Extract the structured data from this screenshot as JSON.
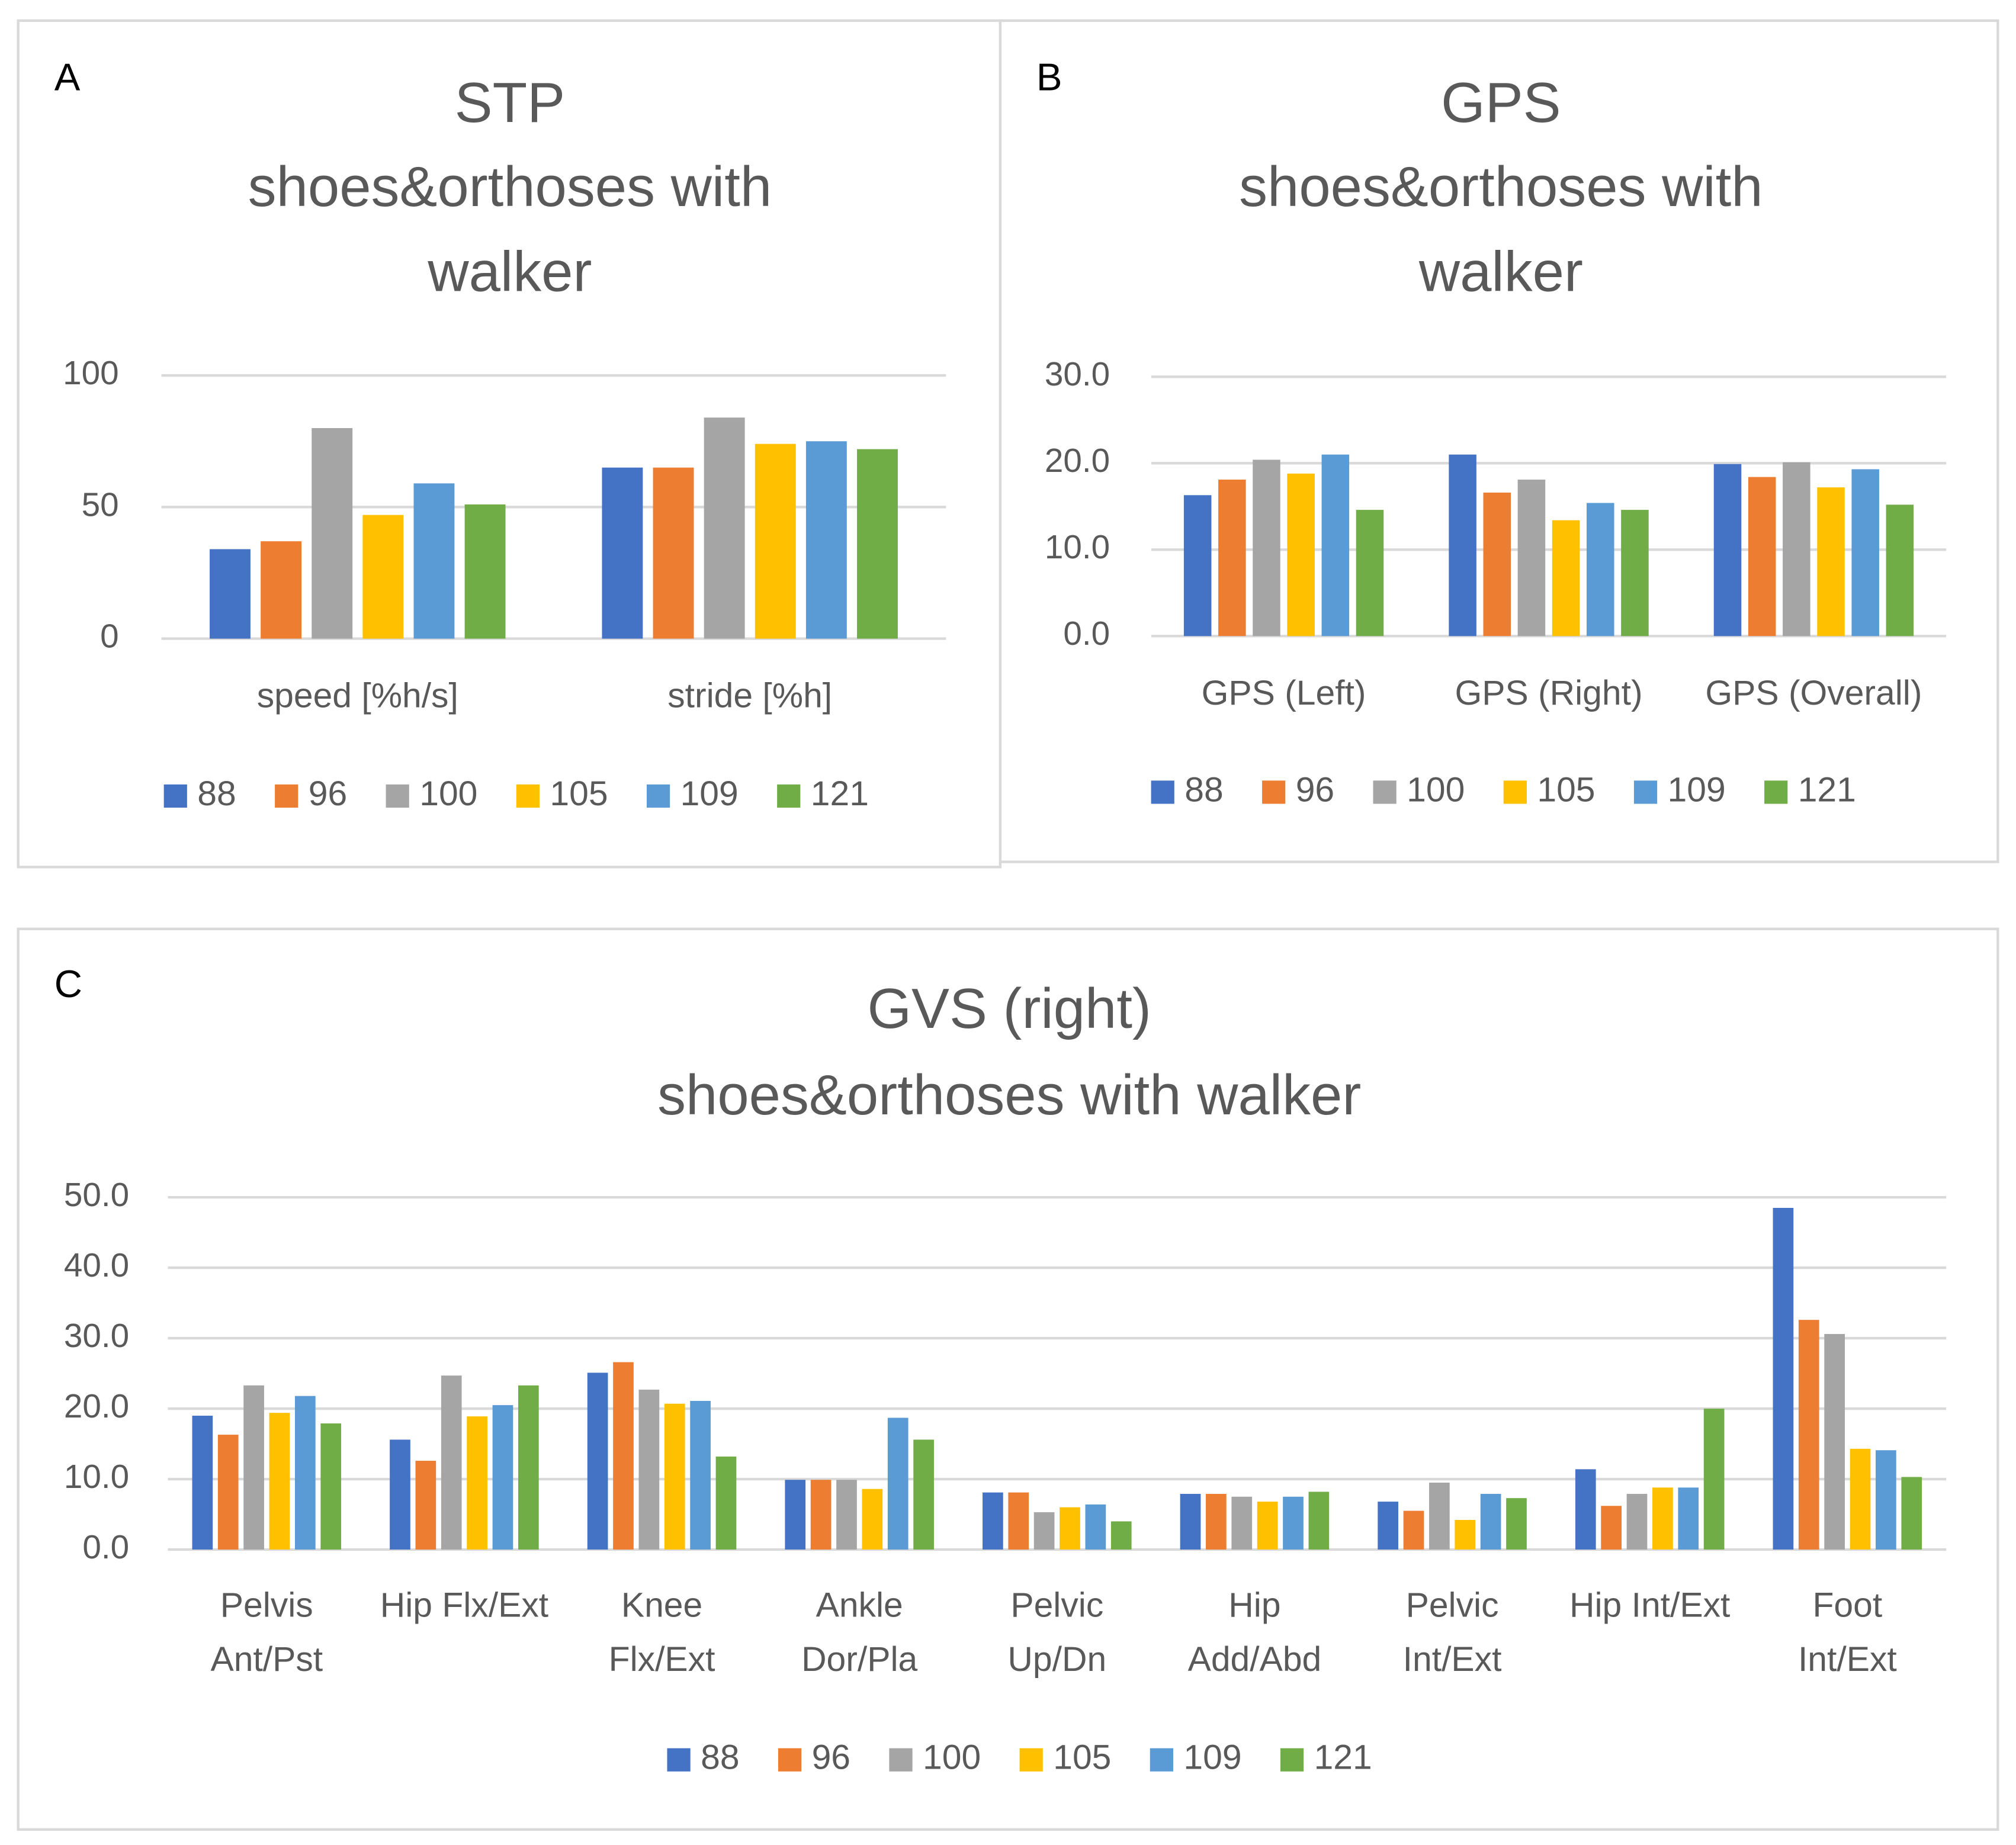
{
  "chart_data": [
    {
      "type": "bar",
      "panel": "A",
      "title": [
        "STP",
        "shoes&orthoses with",
        "walker"
      ],
      "categories": [
        [
          "speed [%h/s]"
        ],
        [
          "stride [%h]"
        ]
      ],
      "ylim": [
        0,
        100
      ],
      "yticks": [
        0,
        50,
        100
      ],
      "grid": true,
      "legend": "bottom",
      "series": [
        {
          "name": "88",
          "color": "#4472c4",
          "values": [
            34,
            65
          ]
        },
        {
          "name": "96",
          "color": "#ed7d31",
          "values": [
            37,
            65
          ]
        },
        {
          "name": "100",
          "color": "#a5a5a5",
          "values": [
            80,
            84
          ]
        },
        {
          "name": "105",
          "color": "#ffc000",
          "values": [
            47,
            74
          ]
        },
        {
          "name": "109",
          "color": "#5b9bd5",
          "values": [
            59,
            75
          ]
        },
        {
          "name": "121",
          "color": "#70ad47",
          "values": [
            51,
            72
          ]
        }
      ]
    },
    {
      "type": "bar",
      "panel": "B",
      "title": [
        "GPS",
        "shoes&orthoses with",
        "walker"
      ],
      "categories": [
        [
          "GPS (Left)"
        ],
        [
          "GPS (Right)"
        ],
        [
          "GPS (Overall)"
        ]
      ],
      "ylim": [
        0,
        30
      ],
      "yticks": [
        {
          "value": 0,
          "label": "0.0"
        },
        {
          "value": 10,
          "label": "10.0"
        },
        {
          "value": 20,
          "label": "20.0"
        },
        {
          "value": 30,
          "label": "30.0"
        }
      ],
      "grid": true,
      "legend": "bottom",
      "series": [
        {
          "name": "88",
          "color": "#4472c4",
          "values": [
            16.3,
            21.0,
            19.9
          ]
        },
        {
          "name": "96",
          "color": "#ed7d31",
          "values": [
            18.1,
            16.6,
            18.4
          ]
        },
        {
          "name": "100",
          "color": "#a5a5a5",
          "values": [
            20.4,
            18.1,
            20.1
          ]
        },
        {
          "name": "105",
          "color": "#ffc000",
          "values": [
            18.8,
            13.4,
            17.2
          ]
        },
        {
          "name": "109",
          "color": "#5b9bd5",
          "values": [
            21.0,
            15.4,
            19.3
          ]
        },
        {
          "name": "121",
          "color": "#70ad47",
          "values": [
            14.6,
            14.6,
            15.2
          ]
        }
      ]
    },
    {
      "type": "bar",
      "panel": "C",
      "title": [
        "GVS (right)",
        "shoes&orthoses with walker"
      ],
      "categories": [
        [
          "Pelvis",
          "Ant/Pst"
        ],
        [
          "Hip Flx/Ext"
        ],
        [
          "Knee",
          "Flx/Ext"
        ],
        [
          "Ankle",
          "Dor/Pla"
        ],
        [
          "Pelvic",
          "Up/Dn"
        ],
        [
          "Hip",
          "Add/Abd"
        ],
        [
          "Pelvic",
          "Int/Ext"
        ],
        [
          "Hip Int/Ext"
        ],
        [
          "Foot",
          "Int/Ext"
        ]
      ],
      "ylim": [
        0,
        50
      ],
      "yticks": [
        {
          "value": 0,
          "label": "0.0"
        },
        {
          "value": 10,
          "label": "10.0"
        },
        {
          "value": 20,
          "label": "20.0"
        },
        {
          "value": 30,
          "label": "30.0"
        },
        {
          "value": 40,
          "label": "40.0"
        },
        {
          "value": 50,
          "label": "50.0"
        }
      ],
      "grid": true,
      "legend": "bottom",
      "series": [
        {
          "name": "88",
          "color": "#4472c4",
          "values": [
            19.0,
            15.6,
            25.1,
            9.9,
            8.1,
            7.9,
            6.8,
            11.4,
            48.5
          ]
        },
        {
          "name": "96",
          "color": "#ed7d31",
          "values": [
            16.3,
            12.6,
            26.6,
            9.9,
            8.1,
            7.9,
            5.5,
            6.2,
            32.6
          ]
        },
        {
          "name": "100",
          "color": "#a5a5a5",
          "values": [
            23.3,
            24.7,
            22.7,
            9.9,
            5.3,
            7.5,
            9.5,
            7.9,
            30.6
          ]
        },
        {
          "name": "105",
          "color": "#ffc000",
          "values": [
            19.4,
            18.9,
            20.7,
            8.6,
            6.0,
            6.8,
            4.2,
            8.8,
            14.3
          ]
        },
        {
          "name": "109",
          "color": "#5b9bd5",
          "values": [
            21.8,
            20.5,
            21.1,
            18.7,
            6.4,
            7.5,
            7.9,
            8.8,
            14.1
          ]
        },
        {
          "name": "121",
          "color": "#70ad47",
          "values": [
            17.9,
            23.3,
            13.2,
            15.6,
            4.0,
            8.2,
            7.3,
            20.0,
            10.3
          ]
        }
      ]
    }
  ]
}
